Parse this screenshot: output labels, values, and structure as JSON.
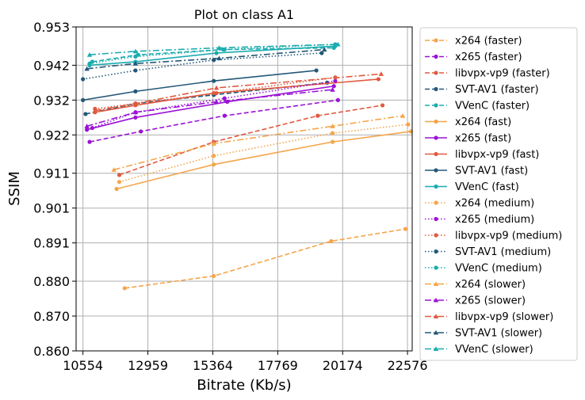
{
  "chart_data": {
    "type": "line",
    "title": "Plot on class A1",
    "xlabel": "Bitrate (Kb/s)",
    "ylabel": "SSIM",
    "xlim": [
      10300,
      22750
    ],
    "ylim": [
      0.86,
      0.953
    ],
    "xticks": [
      10554,
      12959,
      15364,
      17769,
      20174,
      22576
    ],
    "yticks": [
      0.86,
      0.87,
      0.88,
      0.891,
      0.901,
      0.911,
      0.922,
      0.932,
      0.942,
      0.953
    ],
    "ytick_labels": [
      "0.860",
      "0.870",
      "0.880",
      "0.891",
      "0.901",
      "0.911",
      "0.922",
      "0.932",
      "0.942",
      "0.953"
    ],
    "grid": true,
    "legend_position": "outside-right",
    "series": [
      {
        "name": "x264 (faster)",
        "color": "#f5a54a",
        "dash": "dashed",
        "marker": "circle",
        "points": [
          [
            12100,
            0.878
          ],
          [
            15400,
            0.8815
          ],
          [
            19750,
            0.8915
          ],
          [
            22500,
            0.895
          ]
        ]
      },
      {
        "name": "x265 (faster)",
        "color": "#9b12d6",
        "dash": "dashed",
        "marker": "circle",
        "points": [
          [
            10800,
            0.92
          ],
          [
            12700,
            0.923
          ],
          [
            15800,
            0.9275
          ],
          [
            20000,
            0.932
          ]
        ]
      },
      {
        "name": "libvpx-vp9 (faster)",
        "color": "#e05a3f",
        "dash": "dashed",
        "marker": "circle",
        "points": [
          [
            11900,
            0.9105
          ],
          [
            15400,
            0.92
          ],
          [
            19250,
            0.9275
          ],
          [
            21650,
            0.9305
          ]
        ]
      },
      {
        "name": "SVT-AV1 (faster)",
        "color": "#245878",
        "dash": "dashed",
        "marker": "circle",
        "points": [
          [
            10650,
            0.928
          ],
          [
            12500,
            0.931
          ],
          [
            15400,
            0.9335
          ],
          [
            19600,
            0.937
          ]
        ]
      },
      {
        "name": "VVenC (faster)",
        "color": "#1aacaf",
        "dash": "dashed",
        "marker": "circle",
        "points": [
          [
            10900,
            0.943
          ],
          [
            12600,
            0.945
          ],
          [
            15750,
            0.9465
          ],
          [
            19850,
            0.947
          ]
        ]
      },
      {
        "name": "x264 (fast)",
        "color": "#f5a54a",
        "dash": "solid",
        "marker": "circle",
        "points": [
          [
            11800,
            0.9065
          ],
          [
            15400,
            0.9135
          ],
          [
            19800,
            0.92
          ],
          [
            22700,
            0.923
          ]
        ]
      },
      {
        "name": "x265 (fast)",
        "color": "#9b12d6",
        "dash": "solid",
        "marker": "circle",
        "points": [
          [
            10700,
            0.9235
          ],
          [
            12500,
            0.927
          ],
          [
            15900,
            0.9315
          ],
          [
            19850,
            0.936
          ]
        ]
      },
      {
        "name": "libvpx-vp9 (fast)",
        "color": "#e05a3f",
        "dash": "solid",
        "marker": "circle",
        "points": [
          [
            11000,
            0.9285
          ],
          [
            12500,
            0.9305
          ],
          [
            15400,
            0.934
          ],
          [
            21500,
            0.938
          ]
        ]
      },
      {
        "name": "SVT-AV1 (fast)",
        "color": "#245878",
        "dash": "solid",
        "marker": "circle",
        "points": [
          [
            10554,
            0.932
          ],
          [
            12500,
            0.9345
          ],
          [
            15400,
            0.9375
          ],
          [
            19200,
            0.9405
          ]
        ]
      },
      {
        "name": "VVenC (fast)",
        "color": "#1aacaf",
        "dash": "solid",
        "marker": "circle",
        "points": [
          [
            10800,
            0.942
          ],
          [
            12500,
            0.943
          ],
          [
            15500,
            0.9455
          ],
          [
            19900,
            0.9475
          ]
        ]
      },
      {
        "name": "x264 (medium)",
        "color": "#f5a54a",
        "dash": "dotted",
        "marker": "circle",
        "points": [
          [
            11900,
            0.9085
          ],
          [
            15400,
            0.916
          ],
          [
            19800,
            0.9225
          ],
          [
            22600,
            0.925
          ]
        ]
      },
      {
        "name": "x265 (medium)",
        "color": "#9b12d6",
        "dash": "dotted",
        "marker": "circle",
        "points": [
          [
            10900,
            0.924
          ],
          [
            12500,
            0.9285
          ],
          [
            15800,
            0.9325
          ],
          [
            19900,
            0.9375
          ]
        ]
      },
      {
        "name": "libvpx-vp9 (medium)",
        "color": "#e05a3f",
        "dash": "dotted",
        "marker": "circle",
        "points": [
          [
            11000,
            0.9295
          ],
          [
            12500,
            0.931
          ],
          [
            15500,
            0.934
          ],
          [
            19900,
            0.9385
          ]
        ]
      },
      {
        "name": "SVT-AV1 (medium)",
        "color": "#245878",
        "dash": "dotted",
        "marker": "circle",
        "points": [
          [
            10554,
            0.938
          ],
          [
            12500,
            0.9405
          ],
          [
            15400,
            0.9435
          ],
          [
            19400,
            0.9455
          ]
        ]
      },
      {
        "name": "VVenC (medium)",
        "color": "#1aacaf",
        "dash": "dotted",
        "marker": "circle",
        "points": [
          [
            10800,
            0.9425
          ],
          [
            12500,
            0.9445
          ],
          [
            15800,
            0.9465
          ],
          [
            19900,
            0.948
          ]
        ]
      },
      {
        "name": "x264 (slower)",
        "color": "#f5a54a",
        "dash": "dashdot",
        "marker": "triangle",
        "points": [
          [
            11700,
            0.912
          ],
          [
            15400,
            0.9195
          ],
          [
            19800,
            0.9245
          ],
          [
            22400,
            0.9275
          ]
        ]
      },
      {
        "name": "x265 (slower)",
        "color": "#9b12d6",
        "dash": "dashdot",
        "marker": "triangle",
        "points": [
          [
            10700,
            0.9245
          ],
          [
            12500,
            0.9285
          ],
          [
            15500,
            0.9315
          ],
          [
            19800,
            0.935
          ]
        ]
      },
      {
        "name": "libvpx-vp9 (slower)",
        "color": "#e05a3f",
        "dash": "dashdot",
        "marker": "triangle",
        "points": [
          [
            11000,
            0.929
          ],
          [
            12500,
            0.931
          ],
          [
            15500,
            0.9355
          ],
          [
            21600,
            0.9395
          ]
        ]
      },
      {
        "name": "SVT-AV1 (slower)",
        "color": "#245878",
        "dash": "dashdot",
        "marker": "triangle",
        "points": [
          [
            10700,
            0.941
          ],
          [
            12500,
            0.9425
          ],
          [
            15600,
            0.944
          ],
          [
            19500,
            0.9465
          ]
        ]
      },
      {
        "name": "VVenC (slower)",
        "color": "#1aacaf",
        "dash": "dashdot",
        "marker": "triangle",
        "points": [
          [
            10800,
            0.945
          ],
          [
            12500,
            0.946
          ],
          [
            15600,
            0.947
          ],
          [
            20000,
            0.948
          ]
        ]
      }
    ]
  }
}
